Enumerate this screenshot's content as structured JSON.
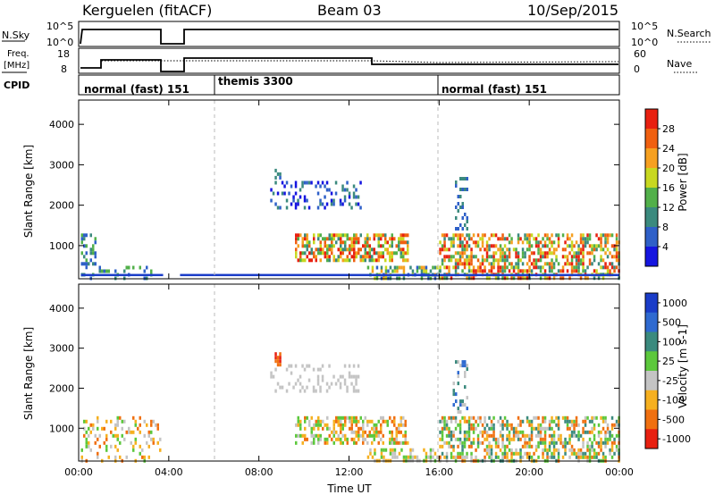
{
  "header": {
    "station": "Kerguelen (fitACF)",
    "beam": "Beam 03",
    "date": "10/Sep/2015"
  },
  "summary_panels": {
    "nsky_label": "N.Sky",
    "nsky_ticks": [
      "10^5",
      "10^0"
    ],
    "nsearch_label": "N.Search",
    "nsearch_ticks": [
      "10^5",
      "10^0"
    ],
    "freq_label_1": "Freq.",
    "freq_label_2": "[MHz]",
    "freq_ticks": [
      "18",
      "8"
    ],
    "nave_label": "Nave",
    "nave_ticks": [
      "60",
      "0"
    ],
    "cpid_label": "CPID",
    "cpid_segments": [
      {
        "label": "normal (fast) 151",
        "start": 0,
        "end": 6
      },
      {
        "label": "themis 3300",
        "start": 6,
        "end": 16
      },
      {
        "label": "normal (fast) 151",
        "start": 16,
        "end": 24
      }
    ]
  },
  "chart_data": [
    {
      "type": "heatmap",
      "name": "power",
      "xlabel": "",
      "ylabel": "Slant Range [km]",
      "xlim": [
        0,
        24
      ],
      "ylim": [
        180,
        4600
      ],
      "yticks": [
        "1000",
        "2000",
        "3000",
        "4000"
      ],
      "colorbar_label": "Power [dB]",
      "colorbar_ticks": [
        "4",
        "8",
        "12",
        "16",
        "20",
        "24",
        "28"
      ],
      "colorbar_colors": [
        "#1515e0",
        "#2f60c8",
        "#3b8a7e",
        "#52b04a",
        "#c8d820",
        "#f6a020",
        "#f06010",
        "#e82010"
      ],
      "data_gap": [
        3.75,
        4.5
      ]
    },
    {
      "type": "heatmap",
      "name": "velocity",
      "xlabel": "Time UT",
      "ylabel": "Slant Range [km]",
      "xlim": [
        0,
        24
      ],
      "ylim": [
        180,
        4600
      ],
      "xticks": [
        "00:00",
        "04:00",
        "08:00",
        "12:00",
        "16:00",
        "20:00",
        "00:00"
      ],
      "yticks": [
        "1000",
        "2000",
        "3000",
        "4000"
      ],
      "colorbar_label": "Velocity [m s-1]",
      "colorbar_ticks": [
        "1000",
        "500",
        "100",
        "25",
        "-25",
        "-100",
        "-500",
        "-1000"
      ],
      "colorbar_colors": [
        "#1a3cc8",
        "#2f6ad0",
        "#3b8a7e",
        "#5cc83c",
        "#c4c4c4",
        "#f6b020",
        "#f07010",
        "#e82010"
      ],
      "data_gap": [
        3.75,
        4.5
      ]
    }
  ]
}
